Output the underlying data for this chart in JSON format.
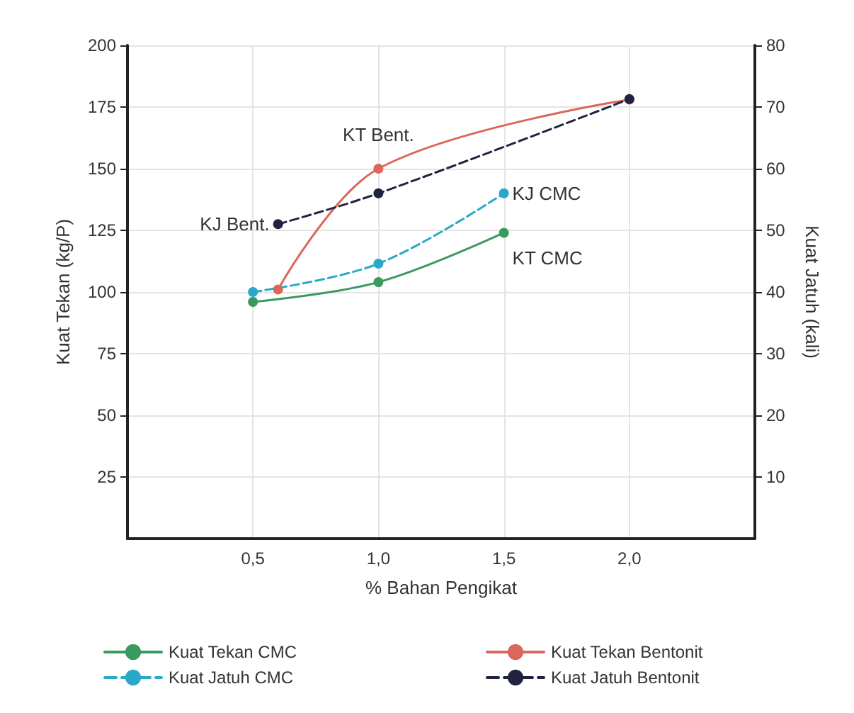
{
  "chart_data": {
    "type": "line",
    "xlabel": "% Bahan Pengikat",
    "ylabel": "Kuat Tekan (kg/P)",
    "y2label": "Kuat Jatuh (kali)",
    "xlim": [
      0,
      2.5
    ],
    "xticks": [
      {
        "value": 0.5,
        "label": "0,5"
      },
      {
        "value": 1.0,
        "label": "1,0"
      },
      {
        "value": 1.5,
        "label": "1,5"
      },
      {
        "value": 2.0,
        "label": "2,0"
      }
    ],
    "ylim": [
      0,
      200
    ],
    "yticks": [
      25,
      50,
      75,
      100,
      125,
      150,
      175,
      200
    ],
    "y2lim": [
      0,
      80
    ],
    "y2ticks": [
      10,
      20,
      30,
      40,
      50,
      60,
      70,
      80
    ],
    "grid": true,
    "legend": "bottom",
    "marker": "circle",
    "series": [
      {
        "name": "Kuat Tekan CMC",
        "color": "#3a9a5e",
        "x": [
          0.5,
          1.0,
          1.5
        ],
        "values": [
          96,
          104,
          124
        ],
        "line_style": "solid"
      },
      {
        "name": "Kuat Tekan Bentonit",
        "color": "#d9675c",
        "x": [
          0.6,
          1.0,
          2.0
        ],
        "values": [
          101,
          150,
          178
        ],
        "line_style": "solid"
      },
      {
        "name": "Kuat Jatuh CMC",
        "color": "#2aa8c8",
        "x": [
          0.5,
          1.0,
          1.5
        ],
        "values": [
          40,
          44.6,
          56
        ],
        "axis": "y2",
        "line_style": "dashed"
      },
      {
        "name": "Kuat Jatuh Bentonit",
        "color": "#1f2340",
        "x": [
          0.6,
          1.0,
          2.0
        ],
        "values": [
          51,
          56,
          71.3
        ],
        "axis": "y2",
        "line_style": "dashed"
      }
    ],
    "annotations": [
      {
        "text": "KT Bent.",
        "x": 1.0,
        "y": 150
      },
      {
        "text": "KJ Bent.",
        "x": 0.6,
        "y": 127.5
      },
      {
        "text": "KJ CMC",
        "x": 1.5,
        "y": 140
      },
      {
        "text": "KT CMC",
        "x": 1.5,
        "y": 124
      }
    ]
  }
}
